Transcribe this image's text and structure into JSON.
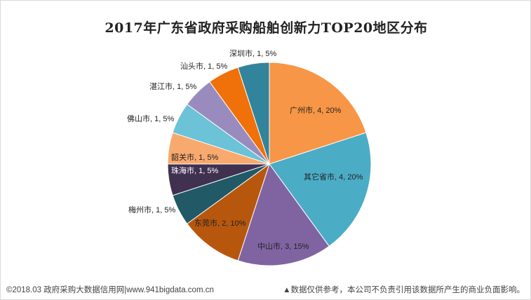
{
  "chart_data": {
    "type": "pie",
    "title": "2017年广东省政府采购船舶创新力TOP20地区分布",
    "slices": [
      {
        "name": "广州市",
        "value": 4,
        "percent": "20%",
        "label": "广州市, 4, 20%",
        "color": "#F79646"
      },
      {
        "name": "其它省市",
        "value": 4,
        "percent": "20%",
        "label": "其它省市, 4, 20%",
        "color": "#4BACC6"
      },
      {
        "name": "中山市",
        "value": 3,
        "percent": "15%",
        "label": "中山市, 3, 15%",
        "color": "#8064A2"
      },
      {
        "name": "东莞市",
        "value": 2,
        "percent": "10%",
        "label": "东莞市, 2, 10%",
        "color": "#B7570E"
      },
      {
        "name": "梅州市",
        "value": 1,
        "percent": "5%",
        "label": "梅州市, 1, 5%",
        "color": "#215967"
      },
      {
        "name": "珠海市",
        "value": 1,
        "percent": "5%",
        "label": "珠海市, 1, 5%",
        "color": "#403151"
      },
      {
        "name": "韶关市",
        "value": 1,
        "percent": "5%",
        "label": "韶关市, 1, 5%",
        "color": "#F8A96E"
      },
      {
        "name": "佛山市",
        "value": 1,
        "percent": "5%",
        "label": "佛山市, 1, 5%",
        "color": "#6CC2D6"
      },
      {
        "name": "湛江市",
        "value": 1,
        "percent": "5%",
        "label": "湛江市, 1, 5%",
        "color": "#9A8BBE"
      },
      {
        "name": "汕头市",
        "value": 1,
        "percent": "5%",
        "label": "汕头市, 1, 5%",
        "color": "#F0700A"
      },
      {
        "name": "深圳市",
        "value": 1,
        "percent": "5%",
        "label": "深圳市, 1, 5%",
        "color": "#31849B"
      }
    ]
  },
  "footer": {
    "left": "©2018.03 政府采购大数据信用网|www.941bigdata.com.cn",
    "right": "▲数据仅供参考，本公司不负责引用该数据所产生的商业负面影响。"
  }
}
